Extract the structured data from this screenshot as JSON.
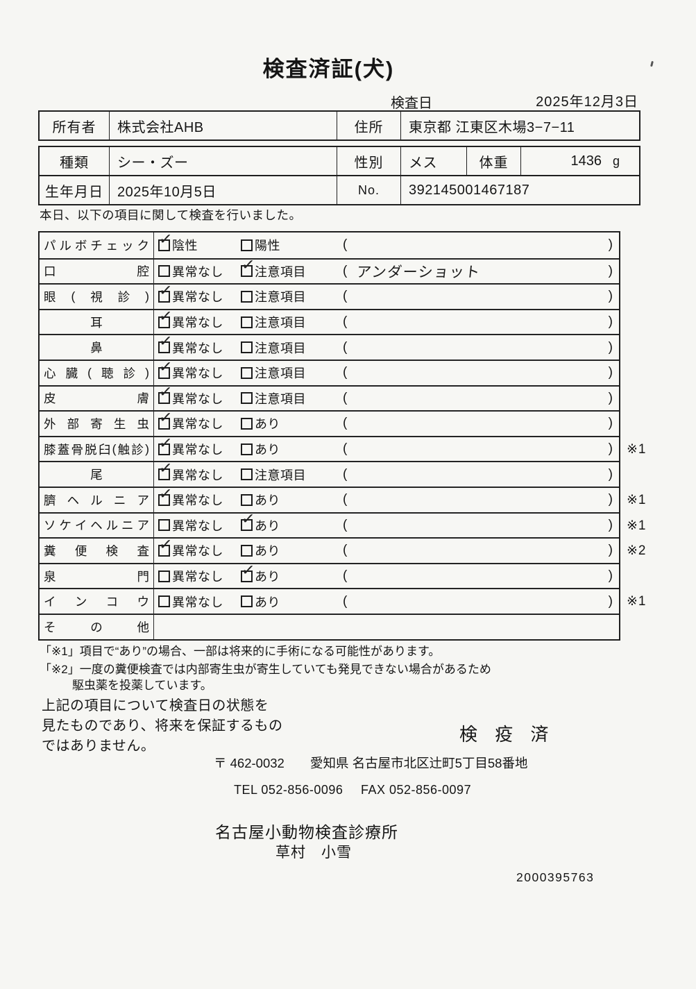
{
  "doc": {
    "title": "検査済証(犬)",
    "date_label": "検査日",
    "date_value": "2025年12月3日",
    "intro": "本日、以下の項目に関して検査を行いました。"
  },
  "owner": {
    "owner_label": "所有者",
    "owner_value": "株式会社AHB",
    "address_label": "住所",
    "address_value": "東京都 江東区木場3−7−11"
  },
  "pet": {
    "breed_label": "種類",
    "breed_value": "シー・ズー",
    "sex_label": "性別",
    "sex_value": "メス",
    "weight_label": "体重",
    "weight_value": "1436",
    "weight_unit": "g",
    "birth_label": "生年月日",
    "birth_value": "2025年10月5日",
    "no_label": "No.",
    "no_value": "392145001467187"
  },
  "checklist": {
    "paren_open": "(",
    "paren_close": ")",
    "check_glyph": "✓",
    "rows": [
      {
        "label": "パルボチェック",
        "opt1": "陰性",
        "opt1_checked": true,
        "opt2": "陽性",
        "opt2_checked": false,
        "note": "",
        "ref": ""
      },
      {
        "label": "口腔",
        "opt1": "異常なし",
        "opt1_checked": false,
        "opt2": "注意項目",
        "opt2_checked": true,
        "note": "アンダーショット",
        "ref": ""
      },
      {
        "label": "眼(視診)",
        "opt1": "異常なし",
        "opt1_checked": true,
        "opt2": "注意項目",
        "opt2_checked": false,
        "note": "",
        "ref": ""
      },
      {
        "label": "耳",
        "opt1": "異常なし",
        "opt1_checked": true,
        "opt2": "注意項目",
        "opt2_checked": false,
        "note": "",
        "ref": ""
      },
      {
        "label": "鼻",
        "opt1": "異常なし",
        "opt1_checked": true,
        "opt2": "注意項目",
        "opt2_checked": false,
        "note": "",
        "ref": ""
      },
      {
        "label": "心臓(聴診)",
        "opt1": "異常なし",
        "opt1_checked": true,
        "opt2": "注意項目",
        "opt2_checked": false,
        "note": "",
        "ref": ""
      },
      {
        "label": "皮膚",
        "opt1": "異常なし",
        "opt1_checked": true,
        "opt2": "注意項目",
        "opt2_checked": false,
        "note": "",
        "ref": ""
      },
      {
        "label": "外部寄生虫",
        "opt1": "異常なし",
        "opt1_checked": true,
        "opt2": "あり",
        "opt2_checked": false,
        "note": "",
        "ref": ""
      },
      {
        "label": "膝蓋骨脱臼(触診)",
        "opt1": "異常なし",
        "opt1_checked": true,
        "opt2": "あり",
        "opt2_checked": false,
        "note": "",
        "ref": "※1"
      },
      {
        "label": "尾",
        "opt1": "異常なし",
        "opt1_checked": true,
        "opt2": "注意項目",
        "opt2_checked": false,
        "note": "",
        "ref": ""
      },
      {
        "label": "臍ヘルニア",
        "opt1": "異常なし",
        "opt1_checked": true,
        "opt2": "あり",
        "opt2_checked": false,
        "note": "",
        "ref": "※1"
      },
      {
        "label": "ソケイヘルニア",
        "opt1": "異常なし",
        "opt1_checked": false,
        "opt2": "あり",
        "opt2_checked": true,
        "note": "",
        "ref": "※1"
      },
      {
        "label": "糞便検査",
        "opt1": "異常なし",
        "opt1_checked": true,
        "opt2": "あり",
        "opt2_checked": false,
        "note": "",
        "ref": "※2"
      },
      {
        "label": "泉門",
        "opt1": "異常なし",
        "opt1_checked": false,
        "opt2": "あり",
        "opt2_checked": true,
        "note": "",
        "ref": ""
      },
      {
        "label": "インコウ",
        "opt1": "異常なし",
        "opt1_checked": false,
        "opt2": "あり",
        "opt2_checked": false,
        "note": "",
        "ref": "※1"
      },
      {
        "label": "その他",
        "opt1": "",
        "opt1_checked": false,
        "opt2": "",
        "opt2_checked": false,
        "note": "",
        "ref": ""
      }
    ]
  },
  "footnotes": {
    "line1": "「※1」項目で“あり”の場合、一部は将来的に手術になる可能性があります。",
    "line2": "「※2」一度の糞便検査では内部寄生虫が寄生していても発見できない場合があるため",
    "line3": "駆虫薬を投薬しています。"
  },
  "disclaimer": {
    "line1": "上記の項目について検査日の状態を",
    "line2": "見たものであり、将来を保証するもの",
    "line3": "ではありません。"
  },
  "clinic": {
    "stamp": "検 疫 済",
    "postal": "〒 462-0032",
    "address": "愛知県 名古屋市北区辻町5丁目58番地",
    "tel": "TEL 052-856-0096",
    "fax": "FAX 052-856-0097",
    "name": "名古屋小動物検査診療所",
    "signer": "草村　小雪",
    "serial": "2000395763"
  }
}
